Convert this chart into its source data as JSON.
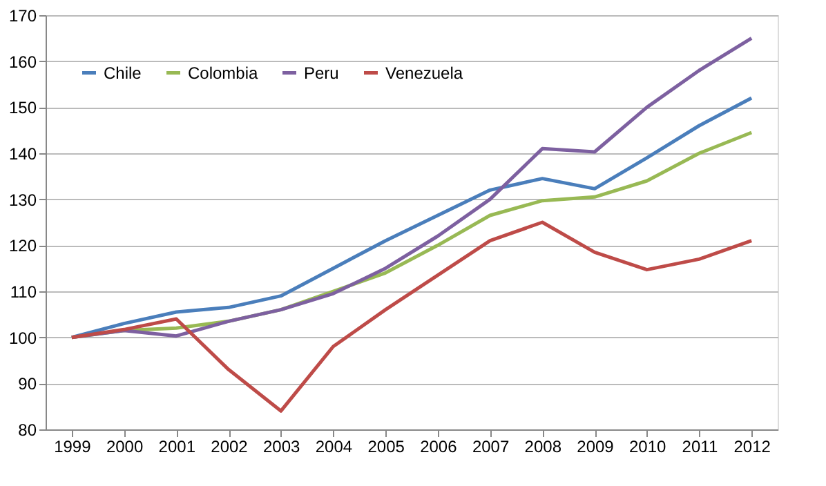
{
  "chart_data": {
    "type": "line",
    "categories": [
      "1999",
      "2000",
      "2001",
      "2002",
      "2003",
      "2004",
      "2005",
      "2006",
      "2007",
      "2008",
      "2009",
      "2010",
      "2011",
      "2012"
    ],
    "series": [
      {
        "name": "Chile",
        "color": "#4a7ebb",
        "values": [
          100,
          103,
          105.5,
          106.5,
          109,
          115,
          121,
          126.5,
          132,
          134.5,
          132.3,
          139,
          146,
          152
        ]
      },
      {
        "name": "Colombia",
        "color": "#98b954",
        "values": [
          100,
          101.5,
          102,
          103.5,
          106,
          110,
          114,
          120,
          126.5,
          129.7,
          130.5,
          134,
          140,
          144.5
        ]
      },
      {
        "name": "Peru",
        "color": "#7d60a0",
        "values": [
          100,
          101.5,
          100.3,
          103.5,
          106,
          109.5,
          115,
          122,
          130,
          141,
          140.3,
          150,
          158,
          165
        ]
      },
      {
        "name": "Venezuela",
        "color": "#be4b48",
        "values": [
          100,
          101.7,
          104,
          93,
          84,
          98,
          106,
          113.5,
          121,
          125,
          118.5,
          114.7,
          117,
          121
        ]
      }
    ],
    "ylim": [
      80,
      170
    ],
    "yticks": [
      80,
      90,
      100,
      110,
      120,
      130,
      140,
      150,
      160,
      170
    ],
    "grid": "y",
    "legend": "top left",
    "marker": "none",
    "line_style": "solid"
  }
}
